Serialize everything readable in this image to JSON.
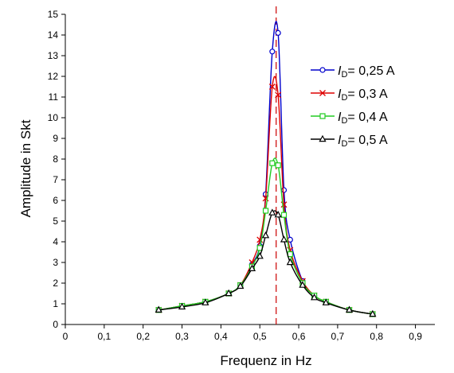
{
  "chart_data": {
    "type": "line",
    "title": "",
    "xlabel": "Frequenz in Hz",
    "ylabel": "Amplitude in Skt",
    "xlim": [
      0,
      0.95
    ],
    "ylim": [
      0,
      15
    ],
    "x_ticks": [
      0,
      0.1,
      0.2,
      0.3,
      0.4,
      0.5,
      0.6,
      0.7,
      0.8,
      0.9
    ],
    "x_tick_labels": [
      "0",
      "0,1",
      "0,2",
      "0,3",
      "0,4",
      "0,5",
      "0,6",
      "0,7",
      "0,8",
      "0,9"
    ],
    "y_ticks": [
      0,
      1,
      2,
      3,
      4,
      5,
      6,
      7,
      8,
      9,
      10,
      11,
      12,
      13,
      14,
      15
    ],
    "y_tick_labels": [
      "0",
      "1",
      "2",
      "3",
      "4",
      "5",
      "6",
      "7",
      "8",
      "9",
      "10",
      "11",
      "12",
      "13",
      "14",
      "15"
    ],
    "grid": false,
    "legend_position": "right",
    "resonance_line": {
      "x": 0.542,
      "color": "#cc0000",
      "style": "dashed"
    },
    "series": [
      {
        "name_prefix": "I",
        "name_sub": "D",
        "name_suffix": "= 0,25 A",
        "color": "#0000cc",
        "marker": "circle",
        "x": [
          0.24,
          0.3,
          0.36,
          0.42,
          0.45,
          0.48,
          0.5,
          0.515,
          0.532,
          0.547,
          0.562,
          0.578,
          0.61,
          0.64,
          0.67,
          0.73,
          0.79
        ],
        "y": [
          0.7,
          0.9,
          1.1,
          1.5,
          1.9,
          2.9,
          3.8,
          6.3,
          13.2,
          14.1,
          6.5,
          4.1,
          2.1,
          1.4,
          1.1,
          0.7,
          0.5
        ]
      },
      {
        "name_prefix": "I",
        "name_sub": "D",
        "name_suffix": "= 0,3 A",
        "color": "#dd0000",
        "marker": "x",
        "x": [
          0.24,
          0.3,
          0.36,
          0.42,
          0.45,
          0.48,
          0.5,
          0.515,
          0.532,
          0.547,
          0.562,
          0.578,
          0.61,
          0.64,
          0.67,
          0.73,
          0.79
        ],
        "y": [
          0.7,
          0.9,
          1.1,
          1.5,
          1.9,
          3.0,
          4.1,
          6.1,
          11.5,
          11.1,
          5.8,
          3.6,
          2.1,
          1.4,
          1.1,
          0.7,
          0.5
        ]
      },
      {
        "name_prefix": "I",
        "name_sub": "D",
        "name_suffix": "= 0,4 A",
        "color": "#22cc22",
        "marker": "square",
        "x": [
          0.24,
          0.3,
          0.36,
          0.42,
          0.45,
          0.48,
          0.5,
          0.515,
          0.532,
          0.547,
          0.562,
          0.578,
          0.61,
          0.64,
          0.67,
          0.73,
          0.79
        ],
        "y": [
          0.7,
          0.9,
          1.1,
          1.5,
          1.9,
          2.8,
          3.7,
          5.5,
          7.8,
          7.7,
          5.3,
          3.4,
          2.0,
          1.4,
          1.1,
          0.7,
          0.5
        ]
      },
      {
        "name_prefix": "I",
        "name_sub": "D",
        "name_suffix": "= 0,5 A",
        "color": "#000000",
        "marker": "triangle",
        "x": [
          0.24,
          0.3,
          0.36,
          0.42,
          0.45,
          0.48,
          0.5,
          0.515,
          0.532,
          0.547,
          0.562,
          0.578,
          0.61,
          0.64,
          0.67,
          0.73,
          0.79
        ],
        "y": [
          0.7,
          0.85,
          1.05,
          1.5,
          1.85,
          2.7,
          3.3,
          4.3,
          5.4,
          5.3,
          4.1,
          3.0,
          1.9,
          1.3,
          1.05,
          0.7,
          0.5
        ]
      }
    ]
  }
}
